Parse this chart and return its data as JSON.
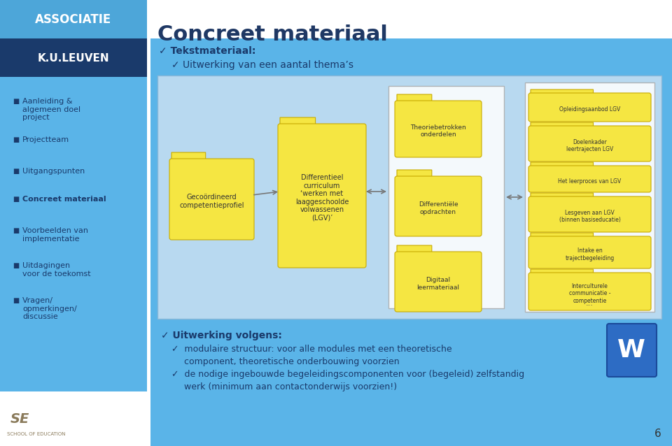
{
  "bg_white": "#ffffff",
  "sidebar_top_blue": "#4da6d9",
  "sidebar_dark_blue": "#1a3a6b",
  "sidebar_medium_blue": "#5ab4e8",
  "main_title": "Concreet materiaal",
  "main_title_color": "#1f3864",
  "diagram_outer_bg": "#7abfdf",
  "diagram_inner_bg": "#b8d9f0",
  "folder_yellow": "#f5e642",
  "folder_border": "#c8aa00",
  "white_box": "#ffffff",
  "sidebar_items": [
    "Aanleiding &\nalgemeen doel\nproject",
    "Projectteam",
    "Uitgangspunten",
    "Concreet materiaal",
    "Voorbeelden van\nimplementatie",
    "Uitdagingen\nvoor de toekomst",
    "Vragen/\nopmerkingen/\ndiscussie"
  ],
  "sidebar_bold_index": 3,
  "check1": "Tekstmateriaal:",
  "check2": "Uitwerking van een aantal thema’s",
  "folder1_text": "Gecoördineerd\ncompetentieprofiel",
  "folder2_text": "Differentieel\ncurriculum\n‘werken met\nlaaggeschoolde\nvolwassenen\n(LGV)’",
  "folder3_text": "Theoriebetrokken\nonderdelen",
  "folder4_text": "Differentiële\nopdrachten",
  "folder5_text": "Digitaal\nleermateriaal",
  "folder_right": [
    "Opleidingsaanbod LGV",
    "Doelenkader\nleertrajecten LGV",
    "Het leerproces van LGV",
    "Lesgeven aan LGV\n(binnen basiseducatie)",
    "Intake en\ntrajectbegeleiding",
    "Interculturele\ncommunicatie -\ncompetentie"
  ],
  "bottom_check1": "✓ Uitwerking volgens:",
  "bottom_check2": "✓  modulaire structuur: voor alle modules met een theoretische\n    component, theoretische onderbouwing voorzien",
  "bottom_check3": "✓  de nodige ingebouwde begeleidingscomponenten voor (begeleid) zelfstandig\n    werk (minimum aan contactonderwijs voorzien!)",
  "page_number": "6",
  "text_nav": "#1a3a6b",
  "arrow_color": "#777777",
  "bottom_bg": "#5ab4e8"
}
